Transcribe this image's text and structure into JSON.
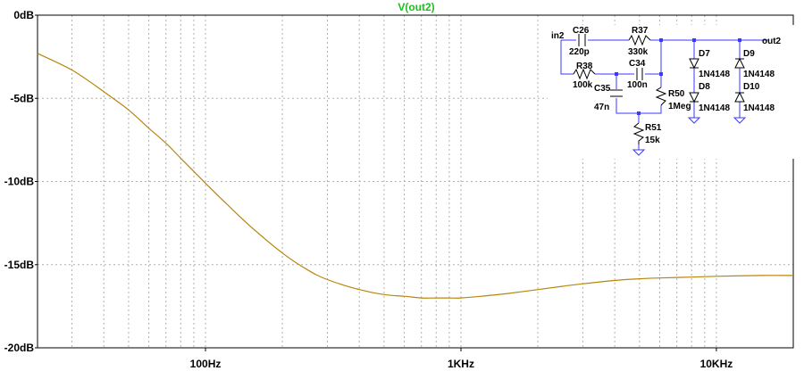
{
  "chart_data": {
    "type": "line",
    "title": "V(out2)",
    "xscale": "log",
    "xlim": [
      22,
      20000
    ],
    "ylim": [
      -20,
      0
    ],
    "y_ticks": [
      0,
      -5,
      -10,
      -15,
      -20
    ],
    "y_tick_labels": [
      "0dB",
      "-5dB",
      "-10dB",
      "-15dB",
      "-20dB"
    ],
    "x_ticks": [
      100,
      1000,
      10000
    ],
    "x_tick_labels": [
      "100Hz",
      "1KHz",
      "10KHz"
    ],
    "grid": true,
    "series": [
      {
        "name": "V(out2)",
        "color": "#b8860b",
        "x": [
          22,
          30,
          40,
          50,
          60,
          70,
          80,
          100,
          120,
          150,
          200,
          250,
          300,
          400,
          500,
          600,
          700,
          800,
          900,
          1000,
          1200,
          1500,
          2000,
          2500,
          3000,
          4000,
          5000,
          6000,
          8000,
          10000,
          15000,
          20000
        ],
        "y": [
          -2.3,
          -3.3,
          -4.6,
          -5.7,
          -6.8,
          -7.7,
          -8.6,
          -10.1,
          -11.3,
          -12.7,
          -14.3,
          -15.3,
          -15.9,
          -16.5,
          -16.8,
          -16.9,
          -17.0,
          -17.0,
          -17.0,
          -17.0,
          -16.9,
          -16.75,
          -16.5,
          -16.3,
          -16.15,
          -15.95,
          -15.85,
          -15.8,
          -15.75,
          -15.7,
          -15.65,
          -15.65
        ]
      }
    ],
    "colors": {
      "title": "#1ec01e",
      "grid": "#b0b0b0",
      "axis": "#000000",
      "trace": "#b8860b"
    }
  },
  "schematic": {
    "labels": {
      "in_net": "in2",
      "out_net": "out2",
      "c26_ref": "C26",
      "c26_val": "220p",
      "r37_ref": "R37",
      "r37_val": "330k",
      "r38_ref": "R38",
      "r38_val": "100k",
      "c34_ref": "C34",
      "c34_val": "100n",
      "c35_ref": "C35",
      "c35_val": "47n",
      "r50_ref": "R50",
      "r50_val": "1Meg",
      "r51_ref": "R51",
      "r51_val": "15k",
      "d7_ref": "D7",
      "d7_val": "1N4148",
      "d8_ref": "D8",
      "d8_val": "1N4148",
      "d9_ref": "D9",
      "d9_val": "1N4148",
      "d10_ref": "D10",
      "d10_val": "1N4148"
    }
  }
}
